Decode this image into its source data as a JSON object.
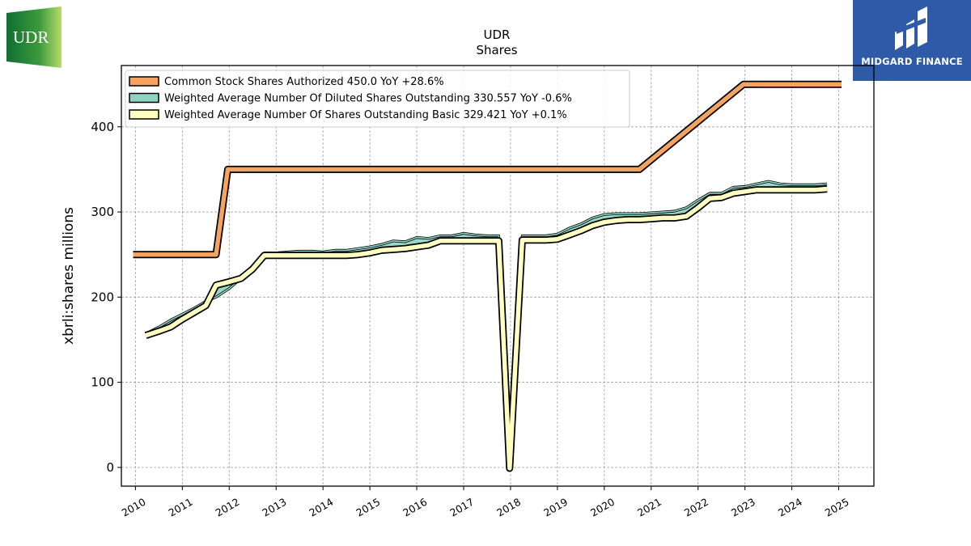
{
  "company": "UDR",
  "brand": {
    "udr_logo_text": "UDR",
    "udr_logo_color": "#1e7b3a",
    "watermark_text": "MIDGARD FINANCE",
    "watermark_color": "#2f5aa8"
  },
  "chart_data": {
    "type": "line",
    "title": "UDR",
    "subtitle": "Shares",
    "ylabel": "xbrli:shares millions",
    "xlabel": "",
    "xlim": [
      2009.7,
      2025.75
    ],
    "ylim": [
      -22,
      472
    ],
    "yticks": [
      0,
      100,
      200,
      300,
      400
    ],
    "xticks": [
      "2010",
      "2011",
      "2012",
      "2013",
      "2014",
      "2015",
      "2016",
      "2017",
      "2018",
      "2019",
      "2020",
      "2021",
      "2022",
      "2023",
      "2024",
      "2025"
    ],
    "grid": true,
    "legend_position": "top-left",
    "series": [
      {
        "name": "Common Stock Shares Authorized  450.0 YoY +28.6%",
        "color": "#f4a460",
        "x": [
          2009.95,
          2011.72,
          2011.97,
          2020.75,
          2022.97,
          2025.06
        ],
        "y": [
          250,
          250,
          350,
          350,
          450,
          450
        ]
      },
      {
        "name": "Weighted Average Number Of Diluted Shares Outstanding  330.557 YoY -0.6%",
        "color": "#8fd3c1",
        "x": [
          2010.22,
          2010.5,
          2010.75,
          2011.0,
          2011.25,
          2011.5,
          2011.72,
          2012.0,
          2012.25,
          2012.5,
          2012.75,
          2013.0,
          2013.25,
          2013.5,
          2013.75,
          2014.0,
          2014.25,
          2014.5,
          2014.75,
          2015.0,
          2015.25,
          2015.5,
          2015.75,
          2016.0,
          2016.25,
          2016.5,
          2016.75,
          2017.0,
          2017.25,
          2017.5,
          2017.75,
          2017.98,
          2018.25,
          2018.5,
          2018.75,
          2019.0,
          2019.25,
          2019.5,
          2019.75,
          2020.0,
          2020.25,
          2020.5,
          2020.75,
          2021.0,
          2021.25,
          2021.5,
          2021.75,
          2022.0,
          2022.25,
          2022.5,
          2022.75,
          2023.0,
          2023.25,
          2023.5,
          2023.75,
          2024.0,
          2024.25,
          2024.5,
          2024.75
        ],
        "y": [
          157,
          165,
          173,
          180,
          187,
          195,
          200,
          210,
          222,
          235,
          252,
          252,
          253,
          254,
          254,
          253,
          255,
          255,
          257,
          259,
          262,
          266,
          265,
          270,
          269,
          272,
          272,
          275,
          273,
          272,
          272,
          0,
          272,
          272,
          272,
          274,
          281,
          286,
          293,
          297,
          298,
          298,
          298,
          299,
          300,
          301,
          305,
          314,
          322,
          322,
          329,
          330,
          333,
          336,
          333,
          332,
          332,
          332,
          333
        ]
      },
      {
        "name": "Weighted Average Number Of Shares Outstanding Basic  329.421 YoY +0.1%",
        "color": "#ffffc2",
        "x": [
          2010.22,
          2010.5,
          2010.75,
          2011.0,
          2011.25,
          2011.5,
          2011.72,
          2012.0,
          2012.25,
          2012.5,
          2012.75,
          2013.0,
          2013.25,
          2013.5,
          2013.75,
          2014.0,
          2014.25,
          2014.5,
          2014.75,
          2015.0,
          2015.25,
          2015.5,
          2015.75,
          2016.0,
          2016.25,
          2016.5,
          2016.75,
          2017.0,
          2017.25,
          2017.5,
          2017.75,
          2017.98,
          2018.25,
          2018.5,
          2018.75,
          2019.0,
          2019.25,
          2019.5,
          2019.75,
          2020.0,
          2020.25,
          2020.5,
          2020.75,
          2021.0,
          2021.25,
          2021.5,
          2021.75,
          2022.0,
          2022.25,
          2022.5,
          2022.75,
          2023.0,
          2023.25,
          2023.5,
          2023.75,
          2024.0,
          2024.25,
          2024.5,
          2024.75
        ],
        "y": [
          155,
          160,
          165,
          174,
          182,
          190,
          214,
          218,
          222,
          233,
          249,
          249,
          249,
          249,
          249,
          249,
          249,
          249,
          250,
          252,
          255,
          256,
          257,
          259,
          261,
          266,
          266,
          266,
          266,
          266,
          266,
          -1,
          267,
          267,
          267,
          268,
          273,
          278,
          284,
          288,
          290,
          291,
          291,
          292,
          293,
          293,
          295,
          305,
          316,
          317,
          322,
          324,
          326,
          326,
          326,
          326,
          326,
          326,
          327
        ]
      }
    ]
  }
}
